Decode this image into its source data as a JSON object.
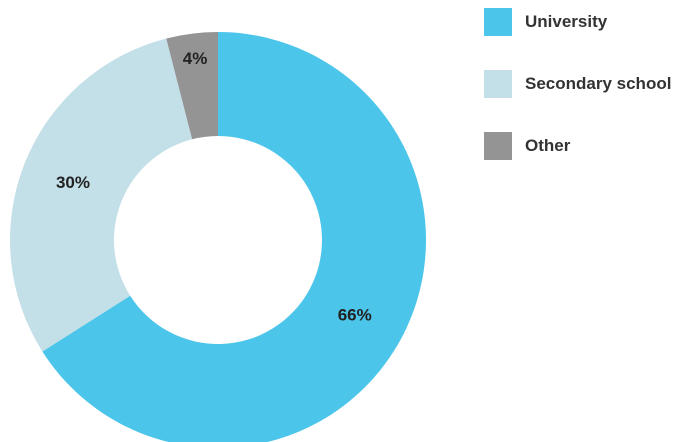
{
  "chart_data": {
    "type": "pie",
    "donut": true,
    "title": "",
    "categories": [
      "University",
      "Secondary school",
      "Other"
    ],
    "values": [
      66,
      30,
      4
    ],
    "value_labels": [
      "66%",
      "30%",
      "4%"
    ],
    "colors": [
      "#4cc5ea",
      "#c3dfe8",
      "#949494"
    ],
    "legend_position": "right"
  }
}
